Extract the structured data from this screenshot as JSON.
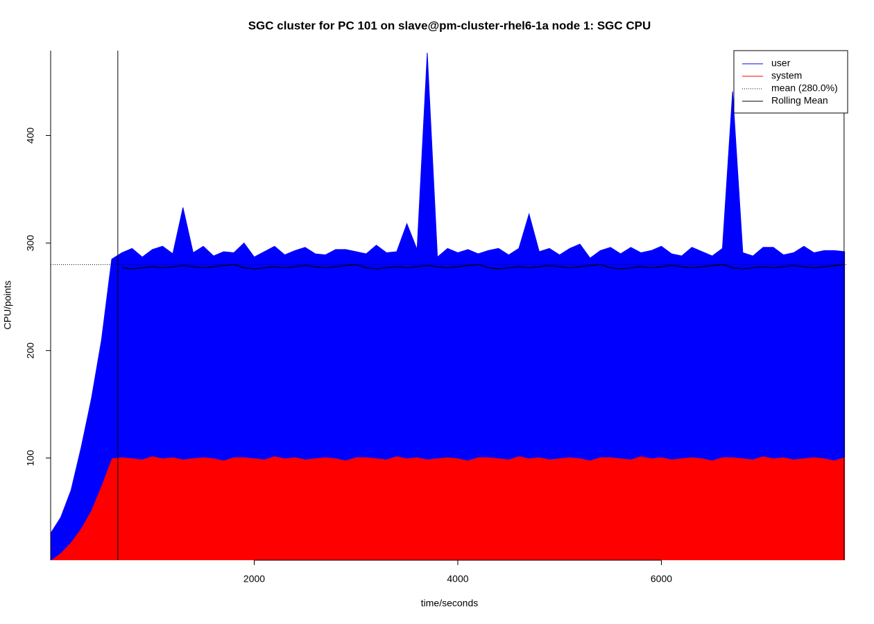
{
  "chart_data": {
    "type": "area",
    "title": "SGC cluster for PC 101 on slave@pm-cluster-rhel6-1a node 1: SGC CPU",
    "x_label": "time/seconds",
    "y_label": "CPU/points",
    "stacked": true,
    "x": [
      0,
      100,
      200,
      300,
      400,
      500,
      600,
      700,
      800,
      900,
      1000,
      1100,
      1200,
      1300,
      1400,
      1500,
      1600,
      1700,
      1800,
      1900,
      2000,
      2100,
      2200,
      2300,
      2400,
      2500,
      2600,
      2700,
      2800,
      2900,
      3000,
      3100,
      3200,
      3300,
      3400,
      3500,
      3600,
      3700,
      3800,
      3900,
      4000,
      4100,
      4200,
      4300,
      4400,
      4500,
      4600,
      4700,
      4800,
      4900,
      5000,
      5100,
      5200,
      5300,
      5400,
      5500,
      5600,
      5700,
      5800,
      5900,
      6000,
      6100,
      6200,
      6300,
      6400,
      6500,
      6600,
      6700,
      6800,
      6900,
      7000,
      7100,
      7200,
      7300,
      7400,
      7500,
      7600,
      7700,
      7800
    ],
    "series": [
      {
        "name": "user",
        "color": "#0000ff",
        "values": [
          25,
          33,
          48,
          75,
          103,
          135,
          185,
          190,
          195,
          188,
          192,
          197,
          189,
          234,
          191,
          196,
          188,
          194,
          190,
          199,
          187,
          193,
          195,
          189,
          192,
          197,
          190,
          188,
          194,
          196,
          191,
          189,
          198,
          192,
          190,
          218,
          193,
          378,
          187,
          194,
          191,
          196,
          189,
          192,
          195,
          190,
          193,
          227,
          191,
          196,
          189,
          194,
          199,
          188,
          192,
          195,
          190,
          197,
          189,
          193,
          196,
          191,
          188,
          195,
          192,
          190,
          194,
          340,
          191,
          189,
          194,
          196,
          188,
          192,
          197,
          190,
          193,
          195,
          191
        ]
      },
      {
        "name": "system",
        "color": "#ff0000",
        "values": [
          5,
          12,
          22,
          35,
          52,
          75,
          100,
          101,
          100,
          99,
          102,
          100,
          101,
          99,
          100,
          101,
          100,
          98,
          101,
          101,
          100,
          99,
          102,
          100,
          101,
          99,
          100,
          101,
          100,
          98,
          101,
          101,
          100,
          99,
          102,
          100,
          101,
          99,
          100,
          101,
          100,
          98,
          101,
          101,
          100,
          99,
          102,
          100,
          101,
          99,
          100,
          101,
          100,
          98,
          101,
          101,
          100,
          99,
          102,
          100,
          101,
          99,
          100,
          101,
          100,
          98,
          101,
          101,
          100,
          99,
          102,
          100,
          101,
          99,
          100,
          101,
          100,
          98,
          101
        ]
      }
    ],
    "mean": {
      "name": "mean (280.0%)",
      "color": "#000000",
      "dash": "dotted",
      "value": 280
    },
    "rolling_mean": {
      "name": "Rolling Mean",
      "color": "#000000",
      "values": [
        null,
        null,
        null,
        null,
        null,
        null,
        null,
        277,
        276,
        277,
        278,
        277,
        278,
        279,
        278,
        277,
        278,
        279,
        280,
        277,
        276,
        277,
        278,
        277,
        278,
        279,
        278,
        277,
        278,
        279,
        280,
        277,
        276,
        277,
        278,
        277,
        278,
        279,
        278,
        277,
        278,
        279,
        280,
        277,
        276,
        277,
        278,
        277,
        278,
        279,
        278,
        277,
        278,
        279,
        280,
        277,
        276,
        277,
        278,
        277,
        278,
        279,
        278,
        277,
        278,
        279,
        280,
        277,
        276,
        277,
        278,
        277,
        278,
        279,
        278,
        277,
        278,
        279,
        280
      ]
    },
    "vlines": [
      660,
      7795
    ],
    "xlim": [
      0,
      7830
    ],
    "ylim": [
      5,
      479
    ],
    "xticks": [
      2000,
      4000,
      6000
    ],
    "yticks": [
      100,
      200,
      300,
      400
    ]
  }
}
